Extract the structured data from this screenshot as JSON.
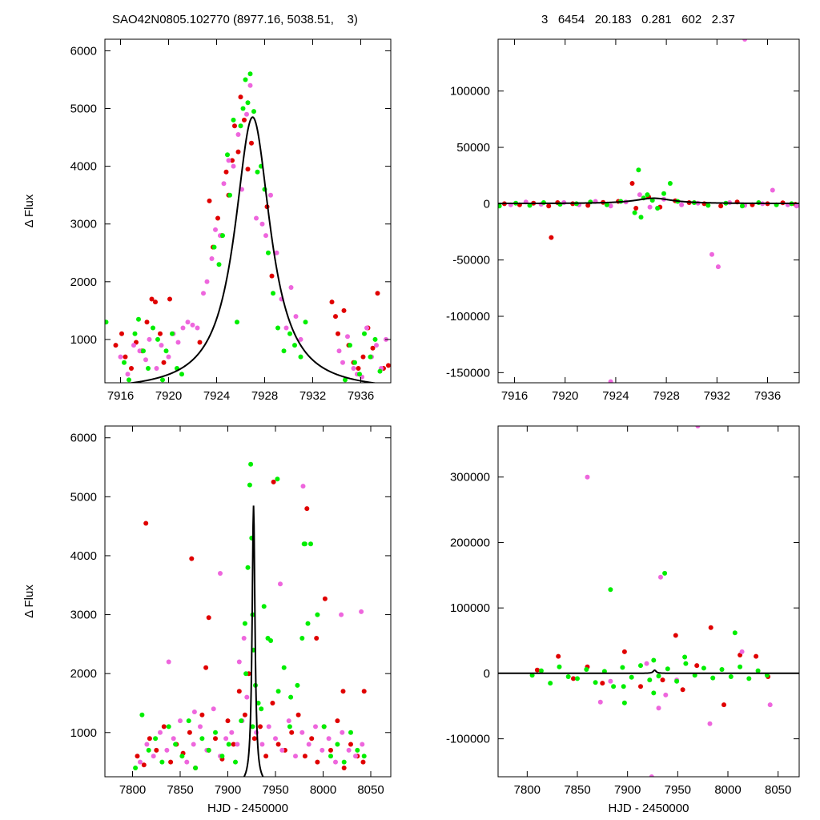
{
  "header": {
    "left_text": "SAO42N0805.102770 (8977.16, 5038.51,    3)",
    "right_text": "3   6454   20.183   0.281   602   2.37"
  },
  "colors": {
    "red": "#e00000",
    "magenta": "#ee66dd",
    "green": "#00ee00",
    "model": "#000000"
  },
  "chart_data": [
    {
      "id": "top-left",
      "type": "scatter",
      "title": "",
      "xlabel": "",
      "ylabel": "Δ Flux",
      "xlim": [
        7914.7,
        7938.5
      ],
      "ylim": [
        250,
        6200
      ],
      "xticks": [
        7916,
        7920,
        7924,
        7928,
        7932,
        7936
      ],
      "yticks": [
        1000,
        2000,
        3000,
        4000,
        5000,
        6000
      ],
      "grid": false,
      "model": {
        "peak_time": 7927.0,
        "peak_flux": 4850,
        "width": 1.8,
        "baseline": 100
      },
      "series": [
        {
          "color": "red",
          "x": [
            7915.6,
            7916.1,
            7916.4,
            7916.9,
            7917.3,
            7917.8,
            7918.2,
            7918.6,
            7918.9,
            7919.3,
            7919.6,
            7920.1,
            7922.6,
            7923.4,
            7923.7,
            7924.1,
            7924.4,
            7924.8,
            7925.0,
            7925.3,
            7925.5,
            7925.8,
            7926.0,
            7926.3,
            7926.6,
            7926.9,
            7928.2,
            7928.6,
            7933.6,
            7933.9,
            7934.1,
            7934.6,
            7935.0,
            7935.4,
            7935.8,
            7936.2,
            7936.6,
            7937.0,
            7937.4,
            7937.9,
            7938.3
          ],
          "y": [
            900,
            1100,
            700,
            500,
            950,
            800,
            1300,
            1700,
            1650,
            1100,
            600,
            1700,
            950,
            3400,
            2600,
            3100,
            2800,
            3900,
            3500,
            4100,
            4700,
            4250,
            5200,
            4800,
            3950,
            4400,
            3300,
            2100,
            1650,
            1400,
            1100,
            1500,
            900,
            600,
            500,
            700,
            1200,
            850,
            1800,
            500,
            550
          ]
        },
        {
          "color": "magenta",
          "x": [
            7916.0,
            7916.6,
            7917.1,
            7917.6,
            7918.1,
            7918.4,
            7919.0,
            7919.4,
            7920.0,
            7920.4,
            7920.8,
            7921.2,
            7921.6,
            7922.0,
            7922.4,
            7922.9,
            7923.2,
            7923.6,
            7923.9,
            7924.3,
            7924.6,
            7925.0,
            7925.4,
            7925.8,
            7926.1,
            7926.5,
            7926.8,
            7927.3,
            7927.8,
            7928.1,
            7928.5,
            7929.0,
            7929.4,
            7929.8,
            7930.2,
            7930.6,
            7931.0,
            7934.2,
            7934.5,
            7934.9,
            7935.4,
            7935.7,
            7936.1,
            7936.5,
            7936.9,
            7937.3,
            7937.7,
            7938.1
          ],
          "y": [
            700,
            400,
            900,
            800,
            650,
            1000,
            500,
            900,
            700,
            1100,
            950,
            1200,
            1300,
            1250,
            1200,
            1800,
            2000,
            2400,
            2900,
            2800,
            3700,
            4100,
            4000,
            4550,
            3600,
            4900,
            5400,
            3100,
            3000,
            2800,
            3500,
            2500,
            1700,
            1200,
            1900,
            1400,
            1000,
            800,
            600,
            1050,
            500,
            400,
            350,
            1200,
            700,
            900,
            500,
            1000
          ]
        },
        {
          "color": "green",
          "x": [
            7914.8,
            7916.3,
            7916.7,
            7917.2,
            7917.5,
            7917.9,
            7918.3,
            7918.7,
            7919.1,
            7919.5,
            7919.8,
            7920.3,
            7920.7,
            7921.1,
            7923.8,
            7924.2,
            7924.5,
            7924.9,
            7925.1,
            7925.4,
            7925.7,
            7926.0,
            7926.2,
            7926.4,
            7926.6,
            7926.8,
            7927.1,
            7927.4,
            7927.7,
            7928.0,
            7928.3,
            7928.7,
            7929.1,
            7929.6,
            7930.1,
            7930.5,
            7931.0,
            7931.4,
            7934.7,
            7935.1,
            7935.5,
            7935.9,
            7936.3,
            7936.8,
            7937.2,
            7937.6
          ],
          "y": [
            1300,
            600,
            300,
            1100,
            1350,
            800,
            500,
            1200,
            1000,
            300,
            800,
            1100,
            500,
            400,
            2600,
            2300,
            2800,
            4200,
            3500,
            4800,
            1300,
            4700,
            5000,
            5500,
            5100,
            5600,
            4950,
            3900,
            4000,
            3600,
            2500,
            1800,
            1200,
            800,
            1100,
            900,
            700,
            1300,
            300,
            900,
            600,
            400,
            1100,
            700,
            1000,
            450
          ]
        }
      ]
    },
    {
      "id": "top-right",
      "type": "scatter",
      "title": "",
      "xlabel": "",
      "ylabel": "",
      "xlim": [
        7914.7,
        7938.5
      ],
      "ylim": [
        -159000,
        146000
      ],
      "xticks": [
        7916,
        7920,
        7924,
        7928,
        7932,
        7936
      ],
      "yticks": [
        -150000,
        -100000,
        -50000,
        0,
        50000,
        100000
      ],
      "grid": false,
      "model": {
        "peak_time": 7927.0,
        "peak_flux": 4850,
        "width": 1.8,
        "baseline": 100
      },
      "series": [
        {
          "color": "red",
          "x": [
            7915.2,
            7916.4,
            7917.5,
            7918.7,
            7919.4,
            7920.6,
            7921.8,
            7923.0,
            7924.2,
            7925.3,
            7925.6,
            7926.6,
            7927.5,
            7928.7,
            7929.8,
            7931.0,
            7932.3,
            7933.6,
            7934.8,
            7936.0,
            7937.2,
            7938.2,
            7918.9
          ],
          "y": [
            0,
            -1000,
            500,
            -2000,
            1000,
            0,
            -1500,
            1200,
            2000,
            18000,
            -4000,
            6000,
            -3000,
            2500,
            1000,
            0,
            -2000,
            1500,
            -1000,
            0,
            800,
            -500,
            -30000
          ]
        },
        {
          "color": "magenta",
          "x": [
            7915.7,
            7916.9,
            7918.1,
            7919.9,
            7921.1,
            7922.4,
            7923.6,
            7924.8,
            7925.9,
            7926.7,
            7927.8,
            7929.2,
            7930.5,
            7931.6,
            7932.1,
            7933.0,
            7934.2,
            7935.6,
            7936.4,
            7937.6,
            7938.3,
            7934.2,
            7923.6
          ],
          "y": [
            -1000,
            1500,
            -500,
            1000,
            -1000,
            2000,
            -2000,
            1500,
            8000,
            -3000,
            4000,
            -1000,
            500,
            -45000,
            -56000,
            1000,
            -1500,
            0,
            12000,
            -1000,
            -2000,
            146000,
            -158000
          ]
        },
        {
          "color": "green",
          "x": [
            7914.8,
            7916.1,
            7917.2,
            7918.3,
            7919.6,
            7920.9,
            7922.0,
            7923.3,
            7924.4,
            7925.5,
            7925.8,
            7926.0,
            7926.2,
            7926.5,
            7926.9,
            7927.3,
            7927.8,
            7928.3,
            7928.9,
            7930.2,
            7931.3,
            7932.7,
            7934.0,
            7935.3,
            7936.7,
            7937.9
          ],
          "y": [
            -2000,
            500,
            -1500,
            1000,
            -500,
            0,
            1500,
            -1000,
            2000,
            -8000,
            30000,
            -12000,
            5000,
            8000,
            3000,
            -4000,
            9000,
            18000,
            2000,
            1000,
            -1500,
            500,
            -2000,
            1000,
            -1000,
            0
          ]
        }
      ]
    },
    {
      "id": "bottom-left",
      "type": "scatter",
      "title": "",
      "xlabel": "HJD - 2450000",
      "ylabel": "Δ Flux",
      "xlim": [
        7771,
        8071
      ],
      "ylim": [
        250,
        6200
      ],
      "xticks": [
        7800,
        7850,
        7900,
        7950,
        8000,
        8050
      ],
      "yticks": [
        1000,
        2000,
        3000,
        4000,
        5000,
        6000
      ],
      "grid": false,
      "model": {
        "peak_time": 7927.0,
        "peak_flux": 4850,
        "width": 1.8,
        "baseline": 100
      },
      "series": [
        {
          "color": "red",
          "x": [
            7805,
            7812,
            7818,
            7825,
            7833,
            7840,
            7846,
            7853,
            7860,
            7866,
            7873,
            7880,
            7887,
            7894,
            7900,
            7906,
            7912,
            7918,
            7922,
            7928,
            7934,
            7940,
            7947,
            7953,
            7960,
            7967,
            7974,
            7981,
            7988,
            7994,
            8001,
            8008,
            8015,
            8022,
            8029,
            8036,
            8042,
            7814,
            7862,
            7877,
            7880,
            7948,
            7983,
            7993,
            8002,
            8021,
            8043
          ],
          "y": [
            600,
            450,
            900,
            700,
            1100,
            500,
            800,
            650,
            1000,
            400,
            1300,
            700,
            900,
            550,
            1200,
            800,
            1700,
            1300,
            2000,
            900,
            1100,
            600,
            1500,
            800,
            700,
            1000,
            1300,
            600,
            900,
            500,
            1100,
            700,
            1200,
            400,
            800,
            600,
            500,
            4550,
            3950,
            2100,
            2950,
            5250,
            4800,
            2600,
            3270,
            1700,
            1700
          ]
        },
        {
          "color": "magenta",
          "x": [
            7808,
            7815,
            7822,
            7829,
            7836,
            7843,
            7850,
            7857,
            7864,
            7871,
            7878,
            7885,
            7892,
            7898,
            7904,
            7910,
            7915,
            7920,
            7930,
            7936,
            7943,
            7950,
            7957,
            7964,
            7971,
            7978,
            7985,
            7992,
            7999,
            8006,
            8013,
            8020,
            8027,
            8034,
            8041,
            7892,
            7912,
            7955,
            7979,
            8019,
            8040,
            7838,
            7865,
            7917
          ],
          "y": [
            500,
            800,
            600,
            1000,
            700,
            900,
            1200,
            500,
            800,
            1100,
            700,
            1400,
            600,
            900,
            1000,
            800,
            1200,
            1600,
            1000,
            800,
            1100,
            900,
            700,
            1200,
            600,
            1000,
            800,
            1100,
            700,
            900,
            500,
            1000,
            700,
            600,
            800,
            3700,
            2200,
            3520,
            5180,
            3000,
            3050,
            2200,
            1350,
            2600
          ]
        },
        {
          "color": "green",
          "x": [
            7803,
            7810,
            7817,
            7824,
            7831,
            7838,
            7845,
            7852,
            7859,
            7866,
            7873,
            7880,
            7887,
            7894,
            7901,
            7908,
            7914,
            7919,
            7923,
            7924,
            7925,
            7926,
            7927,
            7929,
            7932,
            7938,
            7945,
            7952,
            7959,
            7966,
            7973,
            7980,
            7987,
            7994,
            8001,
            8008,
            8015,
            8022,
            8029,
            8036,
            8043,
            7935,
            7942,
            7953,
            7965,
            7978,
            7981,
            7984,
            7921,
            7918,
            7926
          ],
          "y": [
            400,
            1300,
            700,
            900,
            500,
            1100,
            800,
            600,
            1200,
            400,
            900,
            700,
            1000,
            600,
            800,
            500,
            1200,
            2000,
            5200,
            5550,
            4300,
            3000,
            2400,
            1800,
            1500,
            3140,
            2560,
            5300,
            2100,
            1600,
            1800,
            4200,
            4200,
            3000,
            1100,
            600,
            800,
            500,
            1000,
            700,
            600,
            1400,
            2600,
            1700,
            1100,
            2600,
            4200,
            2850,
            3800,
            2850,
            1100
          ]
        }
      ]
    },
    {
      "id": "bottom-right",
      "type": "scatter",
      "title": "",
      "xlabel": "HJD - 2450000",
      "ylabel": "",
      "xlim": [
        7771,
        8071
      ],
      "ylim": [
        -158000,
        378000
      ],
      "xticks": [
        7800,
        7850,
        7900,
        7950,
        8000,
        8050
      ],
      "yticks": [
        -100000,
        0,
        100000,
        200000,
        300000
      ],
      "grid": false,
      "model": {
        "peak_time": 7927.0,
        "peak_flux": 4850,
        "width": 1.8,
        "baseline": 100
      },
      "series": [
        {
          "color": "red",
          "x": [
            7810,
            7831,
            7846,
            7860,
            7875,
            7897,
            7913,
            7935,
            7948,
            7955,
            7969,
            7983,
            7996,
            8012,
            8028,
            8040
          ],
          "y": [
            5000,
            26000,
            -8000,
            10000,
            -15000,
            33000,
            -20000,
            -10000,
            58000,
            -25000,
            12000,
            70000,
            -48000,
            28000,
            26000,
            -5000
          ]
        },
        {
          "color": "magenta",
          "x": [
            7860,
            7883,
            7919,
            7933,
            7938,
            7949,
            7970,
            7982,
            8014,
            8042,
            7873,
            7931,
            7924
          ],
          "y": [
            300000,
            -12000,
            15000,
            147000,
            -33000,
            -10000,
            378000,
            -77000,
            33000,
            -48000,
            -44000,
            -53000,
            -158000
          ]
        },
        {
          "color": "green",
          "x": [
            7805,
            7814,
            7823,
            7832,
            7841,
            7850,
            7859,
            7868,
            7877,
            7886,
            7895,
            7904,
            7913,
            7922,
            7926,
            7931,
            7940,
            7949,
            7958,
            7967,
            7976,
            7985,
            7994,
            8003,
            8012,
            8021,
            8030,
            8039,
            7883,
            7937,
            8007,
            7896,
            7926,
            7957,
            7897
          ],
          "y": [
            -3000,
            4000,
            -15000,
            10000,
            -5000,
            -8000,
            6000,
            -14000,
            3000,
            -20000,
            9000,
            -6000,
            12000,
            -10000,
            20000,
            -4000,
            7000,
            -12000,
            15000,
            -3000,
            8000,
            -7000,
            6000,
            -5000,
            10000,
            -8000,
            4000,
            -3000,
            128000,
            153000,
            62000,
            -20000,
            -30000,
            25000,
            -45000
          ]
        }
      ]
    }
  ]
}
